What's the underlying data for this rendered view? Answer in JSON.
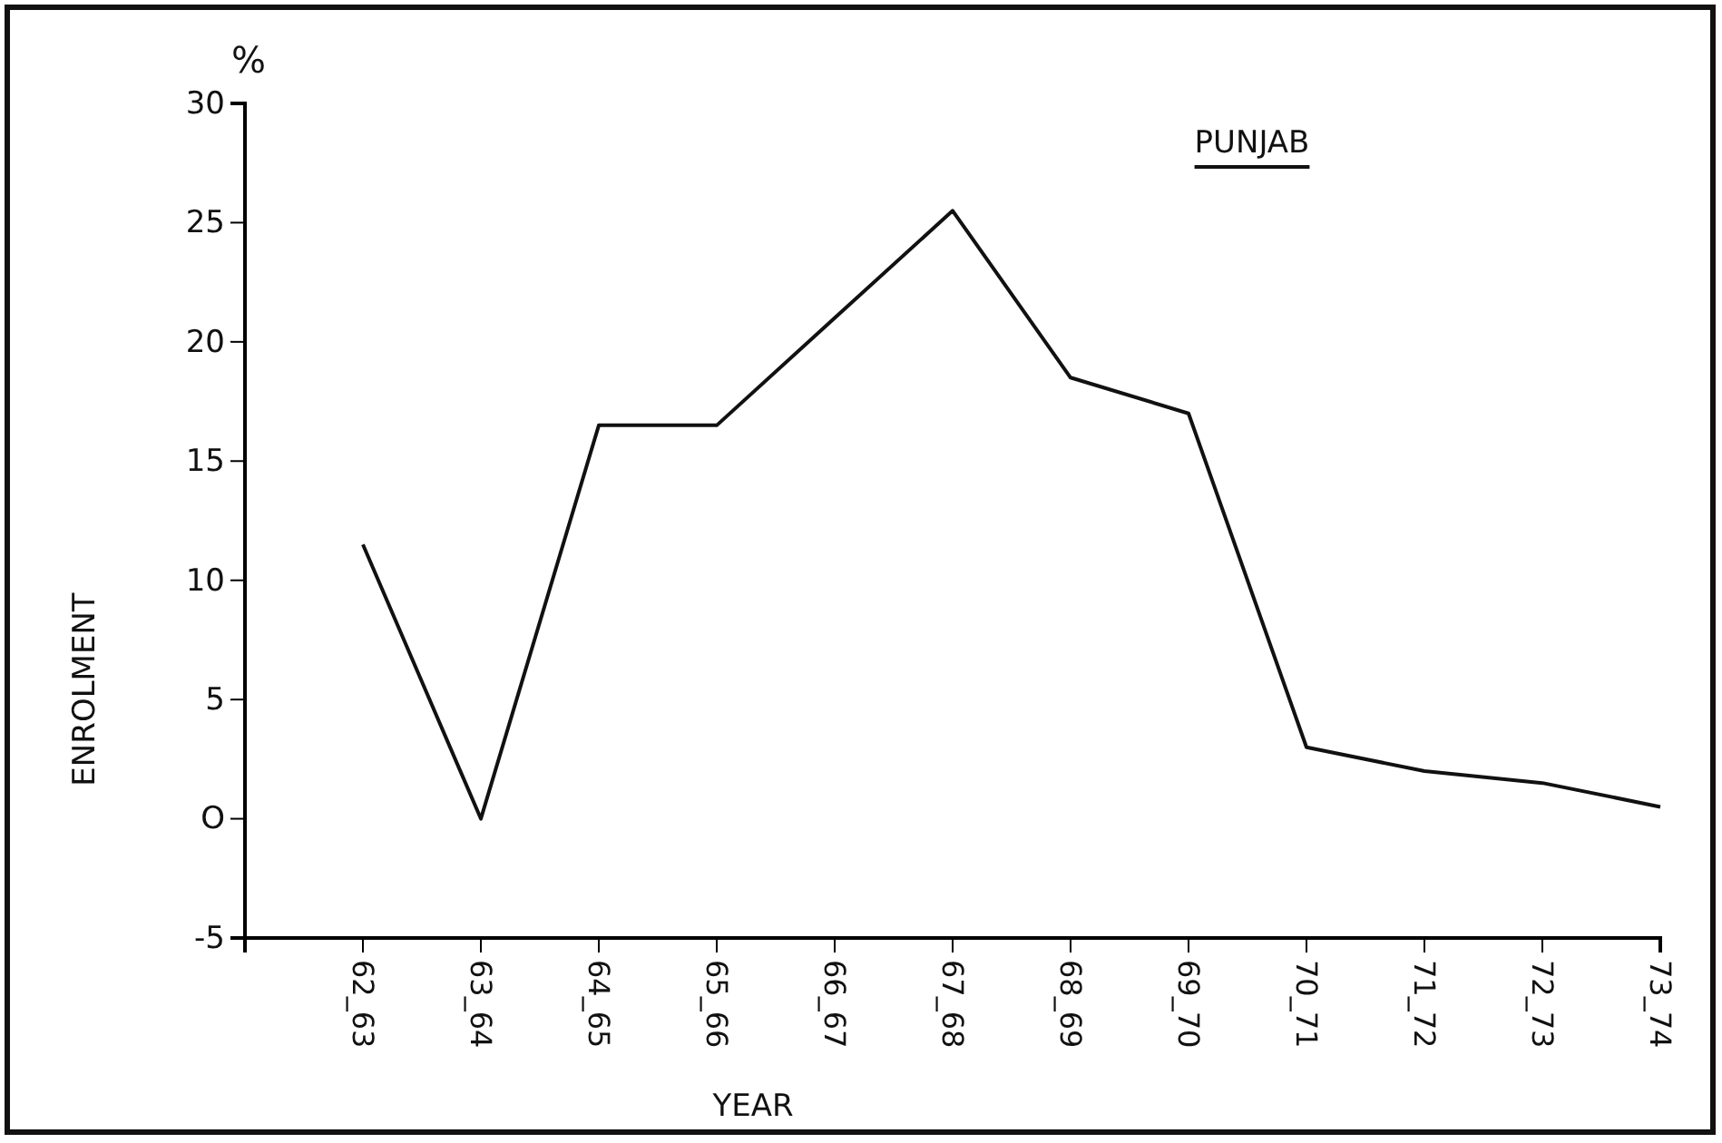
{
  "chart_data": {
    "type": "line",
    "title": "PUNJAB",
    "xlabel": "YEAR",
    "ylabel": "ENROLMENT",
    "annotations": [
      "%"
    ],
    "categories": [
      "62_63",
      "63_64",
      "64_65",
      "65_66",
      "66_67",
      "67_68",
      "68_69",
      "69_70",
      "70_71",
      "71_72",
      "72_73",
      "73_74"
    ],
    "values": [
      11.5,
      0,
      16.5,
      16.5,
      21,
      25.5,
      18.5,
      17,
      3,
      2,
      1.5,
      0.5
    ],
    "color": "#111111",
    "ylim": [
      -5,
      30
    ],
    "yticks": [
      {
        "value": -5,
        "label": "-5"
      },
      {
        "value": 0,
        "label": "O"
      },
      5,
      10,
      15,
      20,
      25,
      30
    ],
    "grid": false,
    "marker": "none",
    "line_style": "solid"
  }
}
